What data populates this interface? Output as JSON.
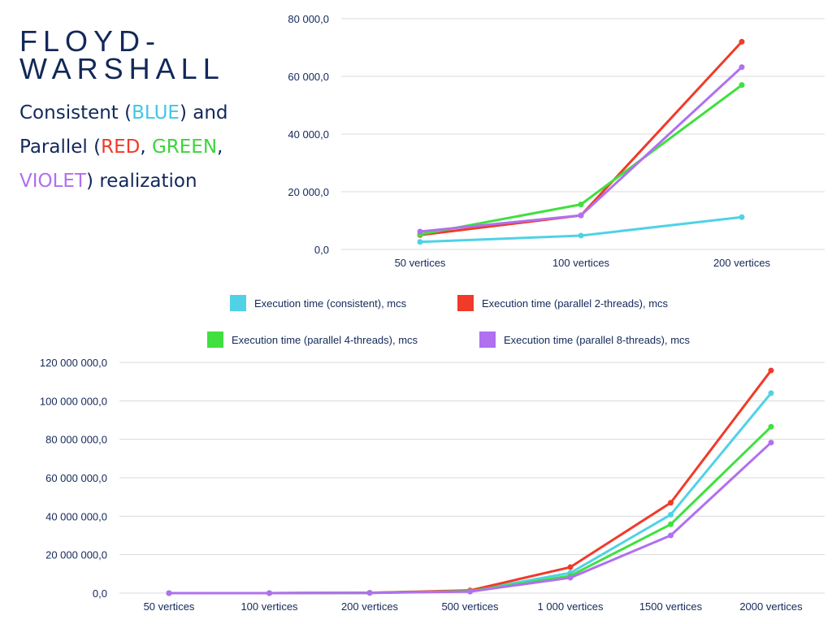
{
  "title": {
    "line1": "FLOYD-",
    "line2": "WARSHALL",
    "sub_consistent": "Consistent (",
    "sub_blue": "BLUE",
    "sub_and": ") and",
    "sub_parallel": "Parallel (",
    "sub_red": "RED",
    "sub_comma1": ", ",
    "sub_green": "GREEN",
    "sub_comma2": ",",
    "sub_violet": "VIOLET",
    "sub_realization": ") realization"
  },
  "colors": {
    "consistent": "#4fd2e6",
    "parallel2": "#f03a2a",
    "parallel4": "#3fe03f",
    "parallel8": "#b070f0",
    "grid": "#d9d9d9"
  },
  "legend": [
    {
      "label": "Execution time (consistent), mcs",
      "color": "#4fd2e6"
    },
    {
      "label": "Execution time (parallel 2-threads), mcs",
      "color": "#f03a2a"
    },
    {
      "label": "Execution time (parallel 4-threads), mcs",
      "color": "#3fe03f"
    },
    {
      "label": "Execution time (parallel 8-threads), mcs",
      "color": "#b070f0"
    }
  ],
  "chart_data": [
    {
      "type": "line",
      "categories": [
        "50 vertices",
        "100 vertices",
        "200 vertices"
      ],
      "ylim": [
        0,
        80000
      ],
      "yticks": [
        "0,0",
        "20 000,0",
        "40 000,0",
        "60 000,0",
        "80 000,0"
      ],
      "grid": true,
      "series": [
        {
          "name": "Execution time (consistent), mcs",
          "values": [
            2600,
            4800,
            11200
          ]
        },
        {
          "name": "Execution time (parallel 2-threads), mcs",
          "values": [
            5000,
            11800,
            72000
          ]
        },
        {
          "name": "Execution time (parallel 4-threads), mcs",
          "values": [
            5200,
            15600,
            57000
          ]
        },
        {
          "name": "Execution time (parallel 8-threads), mcs",
          "values": [
            6200,
            11800,
            63200
          ]
        }
      ]
    },
    {
      "type": "line",
      "categories": [
        "50 vertices",
        "100 vertices",
        "200 vertices",
        "500 vertices",
        "1 000 vertices",
        "1500 vertices",
        "2000 vertices"
      ],
      "ylim": [
        0,
        120000000
      ],
      "yticks": [
        "0,0",
        "20 000 000,0",
        "40 000 000,0",
        "60 000 000,0",
        "80 000 000,0",
        "100 000 000,0",
        "120 000 000,0"
      ],
      "grid": true,
      "series": [
        {
          "name": "Execution time (consistent), mcs",
          "values": [
            0,
            20000,
            150000,
            1200000,
            10500000,
            40800000,
            104000000
          ]
        },
        {
          "name": "Execution time (parallel 2-threads), mcs",
          "values": [
            0,
            25000,
            180000,
            1400000,
            13500000,
            47000000,
            115800000
          ]
        },
        {
          "name": "Execution time (parallel 4-threads), mcs",
          "values": [
            0,
            15000,
            120000,
            1000000,
            9000000,
            35800000,
            86500000
          ]
        },
        {
          "name": "Execution time (parallel 8-threads), mcs",
          "values": [
            0,
            12000,
            100000,
            800000,
            8000000,
            30000000,
            78300000
          ]
        }
      ]
    }
  ]
}
